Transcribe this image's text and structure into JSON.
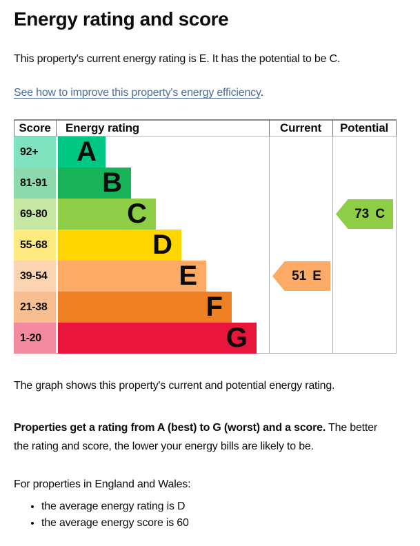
{
  "page": {
    "title": "Energy rating and score",
    "intro": "This property's current energy rating is E. It has the potential to be C.",
    "improve_link": "See how to improve this property's energy efficiency",
    "improve_link_suffix": ".",
    "graph_caption": "The graph shows this property's current and potential energy rating.",
    "explain_bold": "Properties get a rating from A (best) to G (worst) and a score.",
    "explain_rest_line1": "The better",
    "explain_line2": "the rating and score, the lower your energy bills are likely to be.",
    "region_note": "For properties in England and Wales:",
    "bullets": [
      "the average energy rating is D",
      "the average energy score is 60"
    ]
  },
  "chart": {
    "headers": {
      "score": "Score",
      "rating": "Energy rating",
      "current": "Current",
      "potential": "Potential"
    },
    "bands": [
      {
        "score": "92+",
        "letter": "A",
        "color": "#00c781",
        "tint": "#80e3c0"
      },
      {
        "score": "81-91",
        "letter": "B",
        "color": "#19b459",
        "tint": "#8cd9ac"
      },
      {
        "score": "69-80",
        "letter": "C",
        "color": "#8dce46",
        "tint": "#c6e7a2"
      },
      {
        "score": "55-68",
        "letter": "D",
        "color": "#ffd500",
        "tint": "#ffea80"
      },
      {
        "score": "39-54",
        "letter": "E",
        "color": "#fcaa65",
        "tint": "#fdd4b2"
      },
      {
        "score": "21-38",
        "letter": "F",
        "color": "#ef8023",
        "tint": "#f7bf91"
      },
      {
        "score": "1-20",
        "letter": "G",
        "color": "#e9153b",
        "tint": "#f48a9d"
      }
    ],
    "current": {
      "value": "51",
      "letter": "E",
      "band_index": 4,
      "color": "#fcaa65"
    },
    "potential": {
      "value": "73",
      "letter": "C",
      "band_index": 2,
      "color": "#8dce46"
    }
  },
  "chart_data": {
    "type": "bar",
    "title": "Energy rating and score",
    "categories": [
      "A",
      "B",
      "C",
      "D",
      "E",
      "F",
      "G"
    ],
    "score_ranges": [
      "92+",
      "81-91",
      "69-80",
      "55-68",
      "39-54",
      "21-38",
      "1-20"
    ],
    "band_colors": [
      "#00c781",
      "#19b459",
      "#8dce46",
      "#ffd500",
      "#fcaa65",
      "#ef8023",
      "#e9153b"
    ],
    "columns": [
      "Score",
      "Energy rating",
      "Current",
      "Potential"
    ],
    "markers": [
      {
        "name": "Current",
        "score": 51,
        "rating": "E"
      },
      {
        "name": "Potential",
        "score": 73,
        "rating": "C"
      }
    ],
    "legend_position": "none",
    "grid": false
  }
}
